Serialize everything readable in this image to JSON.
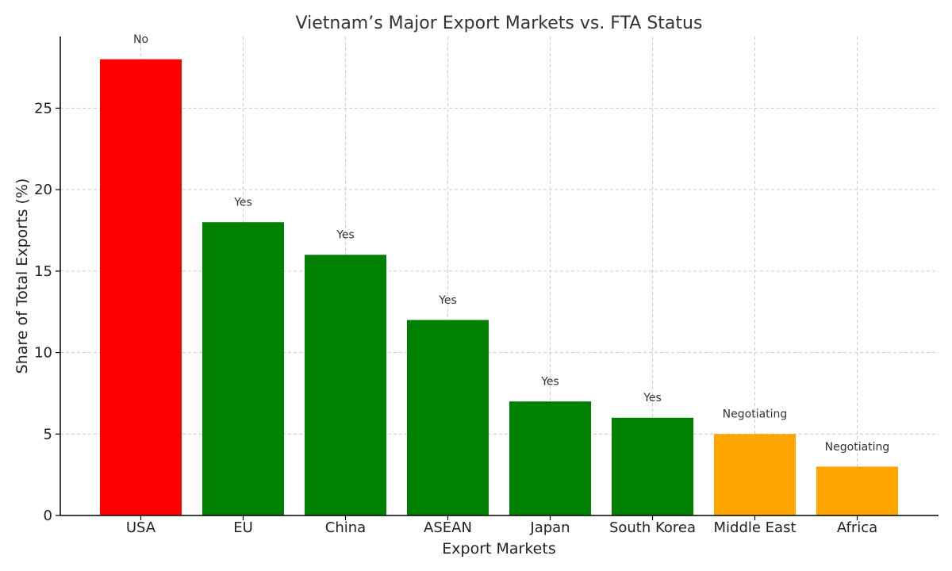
{
  "chart_data": {
    "type": "bar",
    "title": "Vietnam’s Major Export Markets vs. FTA Status",
    "xlabel": "Export Markets",
    "ylabel": "Share of Total Exports (%)",
    "ylim": [
      0,
      29.4
    ],
    "yticks": [
      0,
      5,
      10,
      15,
      20,
      25
    ],
    "grid": true,
    "categories": [
      "USA",
      "EU",
      "China",
      "ASEAN",
      "Japan",
      "South Korea",
      "Middle East",
      "Africa"
    ],
    "values": [
      28,
      18,
      16,
      12,
      7,
      6,
      5,
      3
    ],
    "fta_status": [
      "No",
      "Yes",
      "Yes",
      "Yes",
      "Yes",
      "Yes",
      "Negotiating",
      "Negotiating"
    ],
    "status_colors": {
      "No": "#ff0000",
      "Yes": "#008000",
      "Negotiating": "#ffa500"
    }
  }
}
